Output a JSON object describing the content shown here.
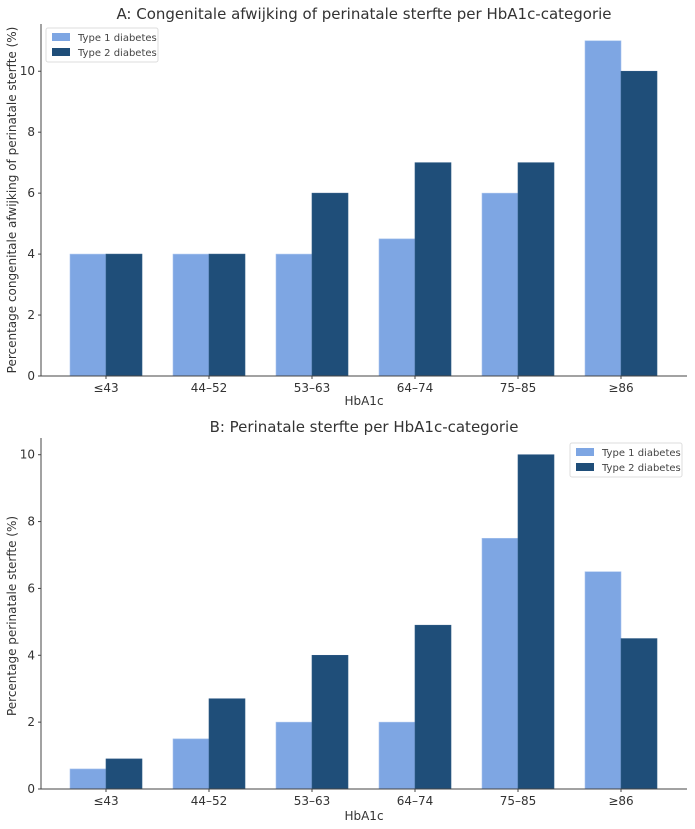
{
  "chart_data": [
    {
      "type": "bar",
      "title": "A: Congenitale afwijking of perinatale sterfte per HbA1c-categorie",
      "xlabel": "HbA1c",
      "ylabel": "Percentage congenitale afwijking of perinatale sterfte (%)",
      "categories": [
        "≤43",
        "44–52",
        "53–63",
        "64–74",
        "75–85",
        "≥86"
      ],
      "series": [
        {
          "name": "Type 1 diabetes",
          "color": "#7ea6e3",
          "values": [
            4,
            4,
            4,
            4.5,
            6,
            11
          ]
        },
        {
          "name": "Type 2 diabetes",
          "color": "#1f4e79",
          "values": [
            4,
            4,
            6,
            7,
            7,
            10
          ]
        }
      ],
      "ylim": [
        0,
        11.55
      ],
      "yticks": [
        0,
        2,
        4,
        6,
        8,
        10
      ],
      "grid": false,
      "legend": "top-left"
    },
    {
      "type": "bar",
      "title": "B: Perinatale sterfte per HbA1c-categorie",
      "xlabel": "HbA1c",
      "ylabel": "Percentage perinatale sterfte (%)",
      "categories": [
        "≤43",
        "44–52",
        "53–63",
        "64–74",
        "75–85",
        "≥86"
      ],
      "series": [
        {
          "name": "Type 1 diabetes",
          "color": "#7ea6e3",
          "values": [
            0.6,
            1.5,
            2,
            2,
            7.5,
            6.5
          ]
        },
        {
          "name": "Type 2 diabetes",
          "color": "#1f4e79",
          "values": [
            0.9,
            2.7,
            4,
            4.9,
            10,
            4.5
          ]
        }
      ],
      "ylim": [
        0,
        10.5
      ],
      "yticks": [
        0,
        2,
        4,
        6,
        8,
        10
      ],
      "grid": false,
      "legend": "top-right"
    }
  ]
}
